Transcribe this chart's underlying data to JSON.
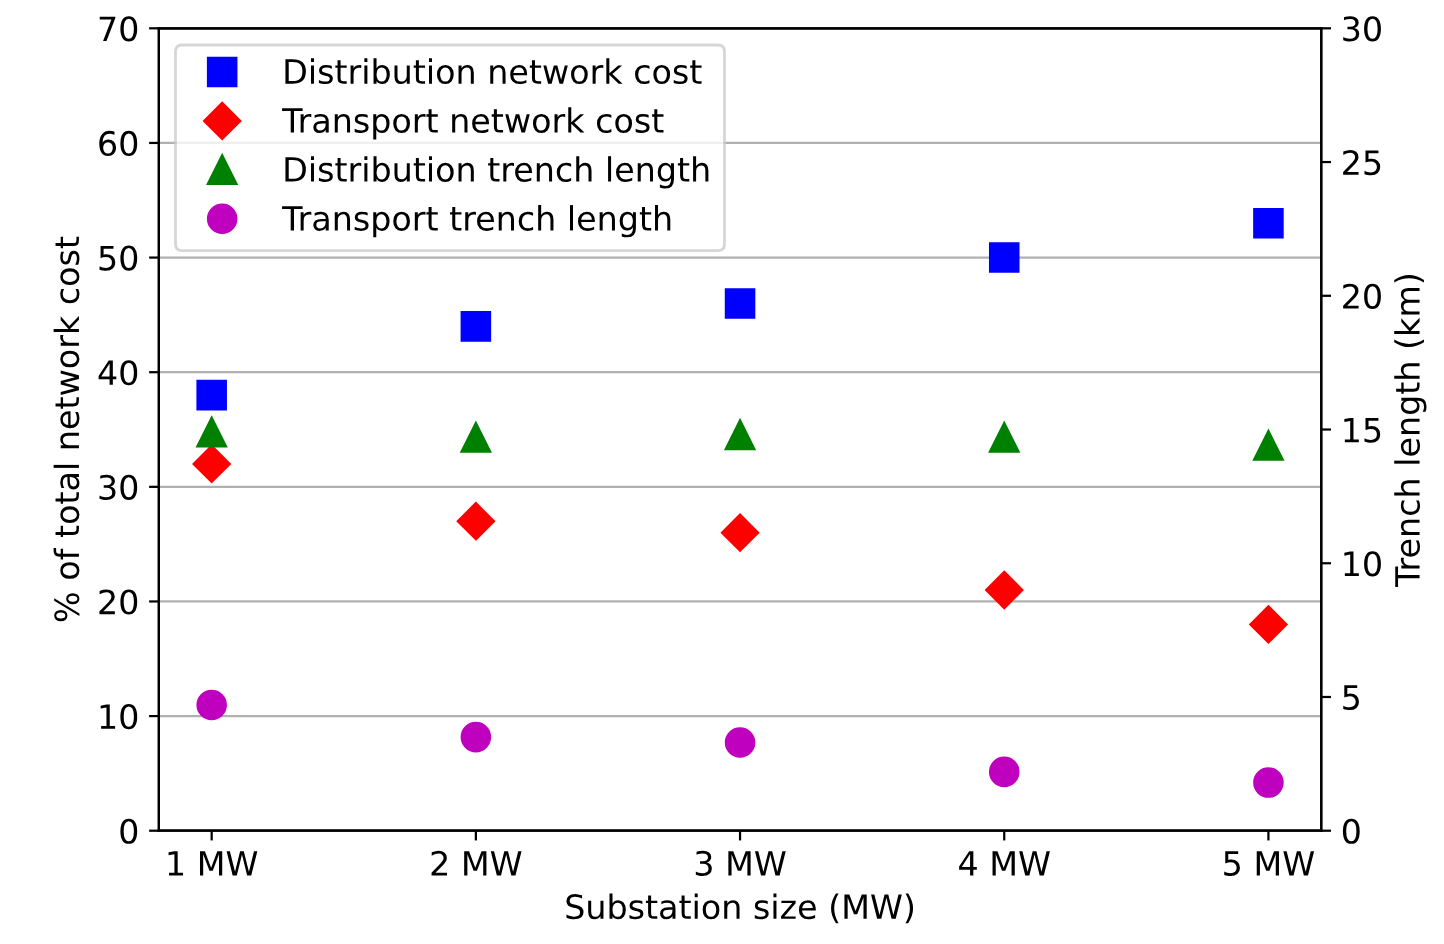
{
  "chart_data": {
    "type": "scatter",
    "xlabel": "Substation size (MW)",
    "ylabel": "% of total network cost",
    "y2label": "Trench length (km)",
    "categories": [
      "1 MW",
      "2 MW",
      "3 MW",
      "4 MW",
      "5 MW"
    ],
    "series": [
      {
        "name": "Distribution network cost",
        "color": "#0000ff",
        "marker": "square",
        "values": [
          38,
          44,
          46,
          50,
          53
        ]
      },
      {
        "name": "Transport network cost",
        "color": "#ff0000",
        "marker": "diamond",
        "values": [
          32,
          27,
          26,
          21,
          18
        ]
      },
      {
        "name": "Distribution trench length",
        "color": "#008000",
        "marker": "triangle",
        "axis": "y2",
        "values": [
          14.9,
          14.7,
          14.8,
          14.7,
          14.4
        ]
      },
      {
        "name": "Transport trench length",
        "color": "#bf00bf",
        "marker": "circle",
        "axis": "y2",
        "values": [
          4.7,
          3.5,
          3.3,
          2.2,
          1.8
        ]
      }
    ],
    "ylim": [
      0,
      70
    ],
    "yticks": [
      0,
      10,
      20,
      30,
      40,
      50,
      60,
      70
    ],
    "y2lim": [
      0,
      30
    ],
    "y2ticks": [
      0,
      5,
      10,
      15,
      20,
      25,
      30
    ],
    "grid": "y",
    "legend": "top left"
  }
}
